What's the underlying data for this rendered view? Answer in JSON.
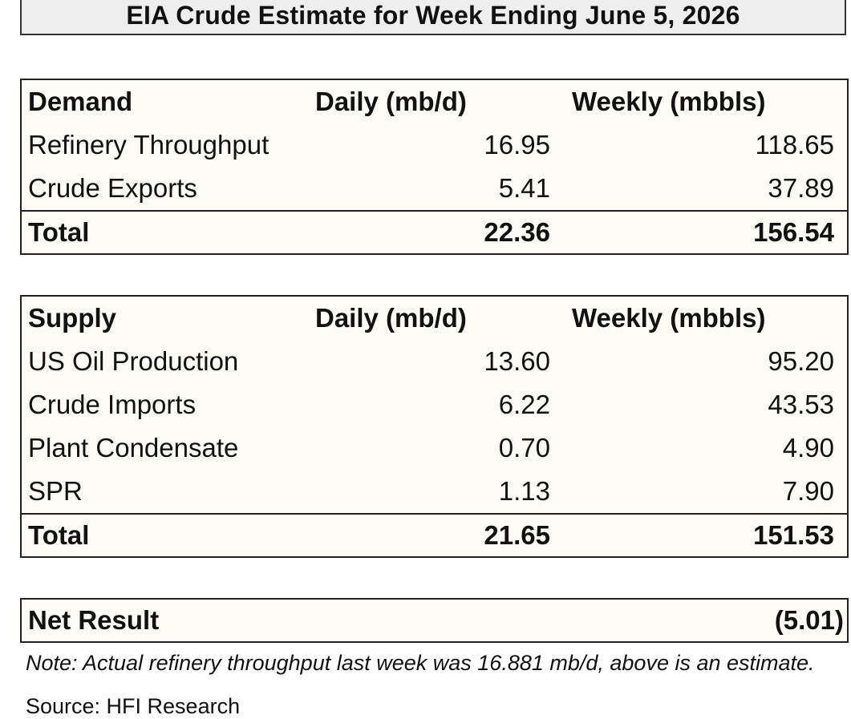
{
  "title": "EIA Crude Estimate for Week Ending June 5, 2026",
  "demand": {
    "header": {
      "label": "Demand",
      "daily": "Daily (mb/d)",
      "weekly": "Weekly (mbbls)"
    },
    "rows": [
      {
        "label": "Refinery Throughput",
        "daily": "16.95",
        "weekly": "118.65"
      },
      {
        "label": "Crude Exports",
        "daily": "5.41",
        "weekly": "37.89"
      }
    ],
    "total": {
      "label": "Total",
      "daily": "22.36",
      "weekly": "156.54"
    }
  },
  "supply": {
    "header": {
      "label": "Supply",
      "daily": "Daily (mb/d)",
      "weekly": "Weekly (mbbls)"
    },
    "rows": [
      {
        "label": "US Oil Production",
        "daily": "13.60",
        "weekly": "95.20"
      },
      {
        "label": "Crude Imports",
        "daily": "6.22",
        "weekly": "43.53"
      },
      {
        "label": "Plant Condensate",
        "daily": "0.70",
        "weekly": "4.90"
      },
      {
        "label": "SPR",
        "daily": "1.13",
        "weekly": "7.90"
      }
    ],
    "total": {
      "label": "Total",
      "daily": "21.65",
      "weekly": "151.53"
    }
  },
  "net_result": {
    "label": "Net Result",
    "value": "(5.01)"
  },
  "note": "Note: Actual refinery throughput last week was 16.881 mb/d, above is an estimate.",
  "source": "Source: HFI Research"
}
